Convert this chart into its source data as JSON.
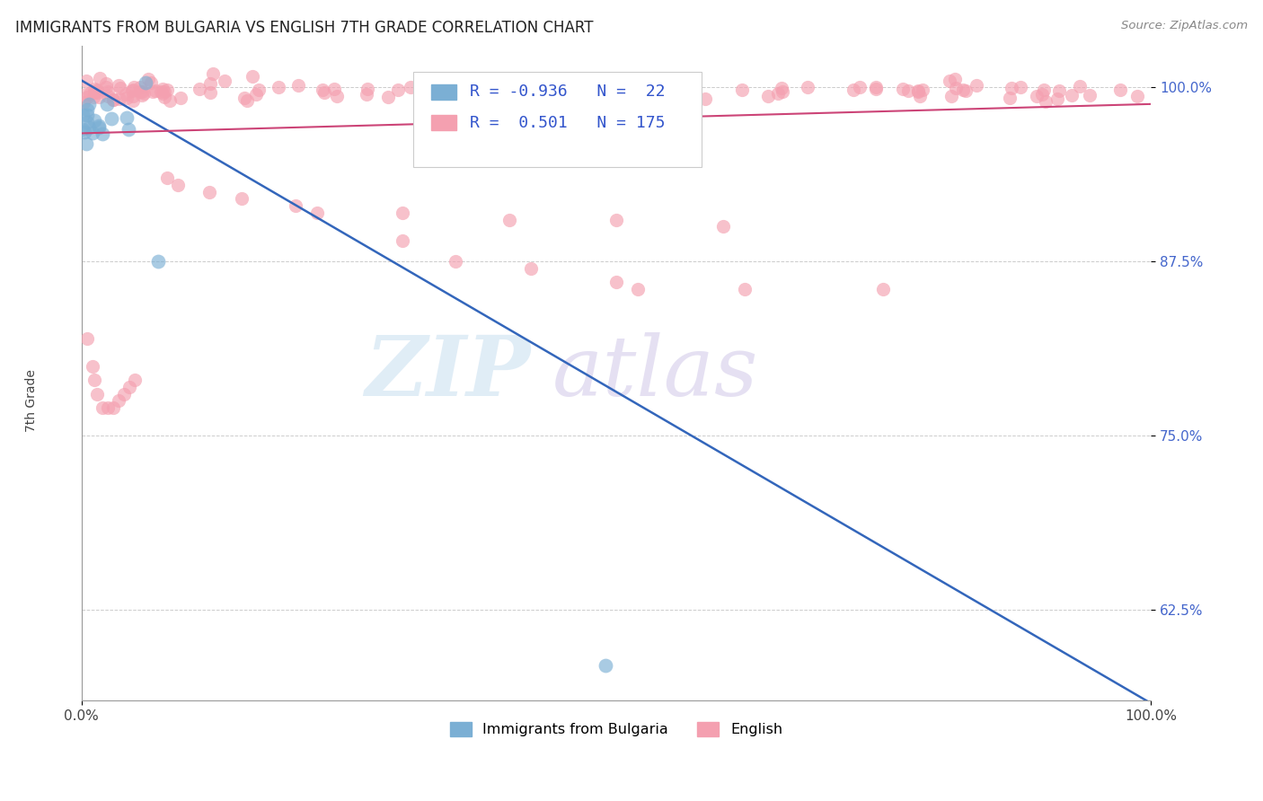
{
  "title": "IMMIGRANTS FROM BULGARIA VS ENGLISH 7TH GRADE CORRELATION CHART",
  "source": "Source: ZipAtlas.com",
  "ylabel": "7th Grade",
  "watermark_zip": "ZIP",
  "watermark_atlas": "atlas",
  "blue_label": "Immigrants from Bulgaria",
  "pink_label": "English",
  "blue_R": -0.936,
  "blue_N": 22,
  "pink_R": 0.501,
  "pink_N": 175,
  "blue_scatter_color": "#7bafd4",
  "pink_scatter_color": "#f4a0b0",
  "blue_line_color": "#3366bb",
  "pink_line_color": "#cc4477",
  "background_color": "#ffffff",
  "xlim": [
    0.0,
    1.0
  ],
  "ylim": [
    0.56,
    1.03
  ],
  "yticks": [
    0.625,
    0.75,
    0.875,
    1.0
  ],
  "ytick_labels": [
    "62.5%",
    "75.0%",
    "87.5%",
    "100.0%"
  ],
  "blue_line_x": [
    0.0,
    1.0
  ],
  "blue_line_y": [
    1.005,
    0.558
  ],
  "pink_line_x": [
    0.0,
    1.0
  ],
  "pink_line_y": [
    0.967,
    0.988
  ]
}
